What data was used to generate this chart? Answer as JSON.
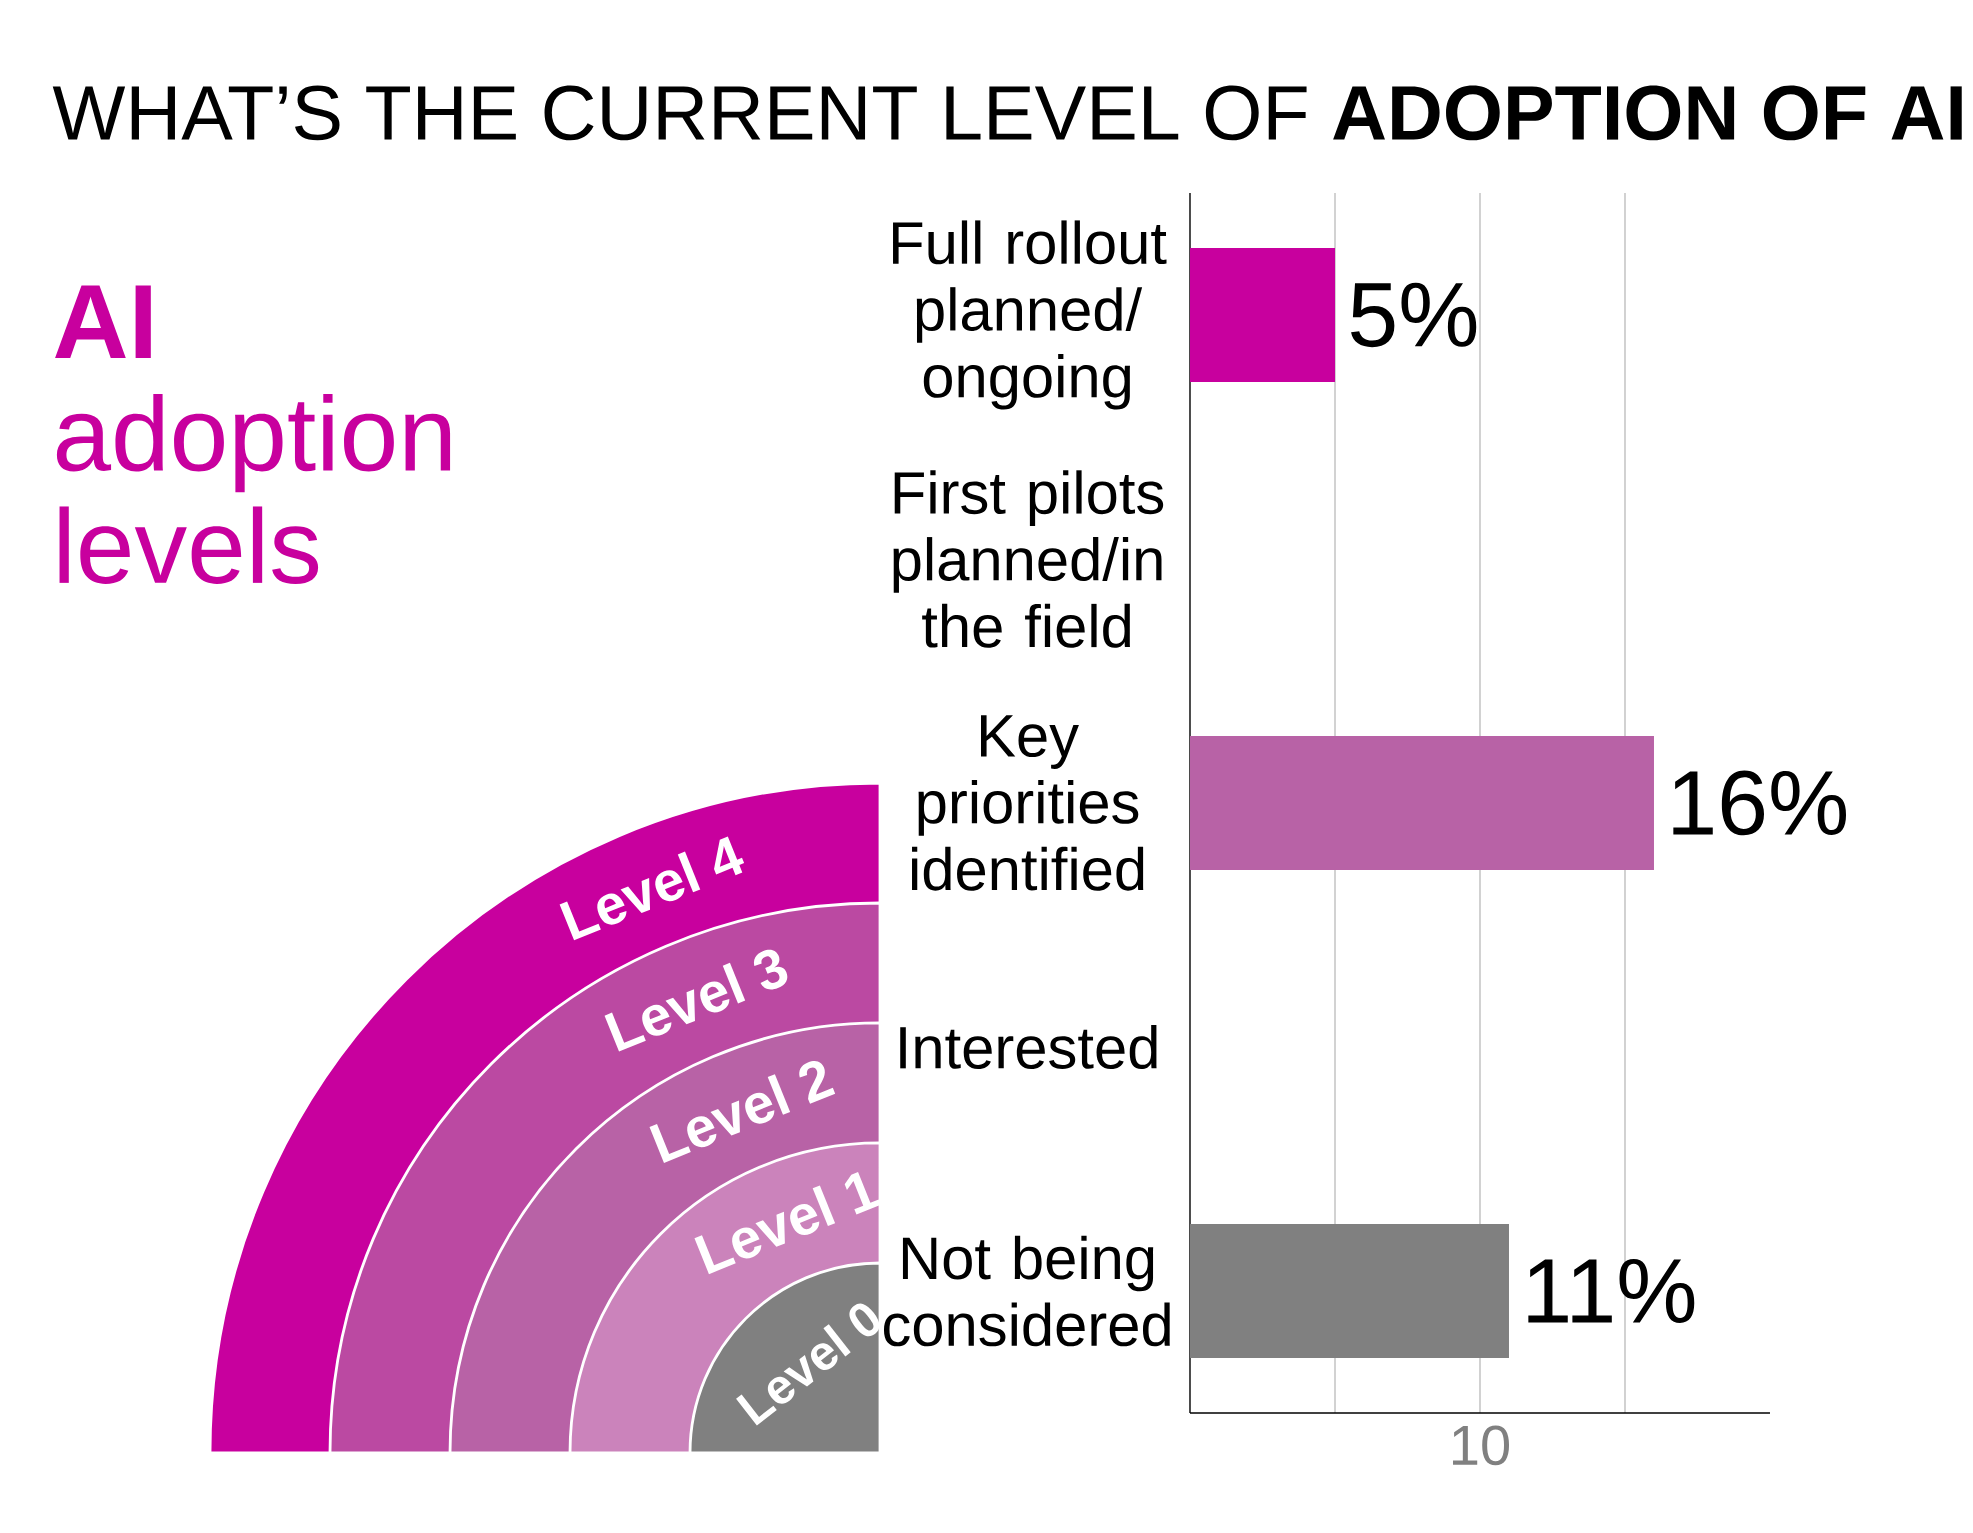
{
  "chart_data": {
    "type": "bar",
    "orientation": "horizontal",
    "title": "WHAT’S THE CURRENT LEVEL OF **ADOPTION OF AI**",
    "categories": [
      "Full rollout planned/ ongoing",
      "First pilots planned/in the field",
      "Key priorities identified",
      "Interested",
      "Not being considered"
    ],
    "values": [
      5,
      null,
      16,
      null,
      11
    ],
    "value_labels": [
      "5%",
      null,
      "16%",
      null,
      "11%"
    ],
    "colors": [
      "#c8009e",
      "#bb49a2",
      "#b862a6",
      "#cb83bb",
      "#808080"
    ],
    "xlim": [
      0,
      20
    ],
    "xticks": [
      {
        "value": 5,
        "label": null
      },
      10,
      {
        "value": 15,
        "label": null
      }
    ],
    "grid": "x",
    "annotations": [
      "Level 0",
      "Level 1",
      "Level 2",
      "Level 3",
      "Level 4",
      "**AI** adoption levels"
    ]
  }
}
